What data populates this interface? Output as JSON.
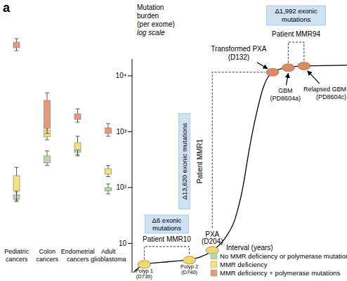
{
  "panel": "a",
  "chart_data": [
    {
      "type": "box",
      "categories": [
        "Pediatric cancers",
        "Colon cancers",
        "Endometrial cancers",
        "Adult glioblastoma"
      ],
      "log": "y",
      "ylim": [
        3,
        30000
      ],
      "tick_labels": "x",
      "legend": "bottom right",
      "series": [
        {
          "name": "No MMR deficiency or polymerase mutations",
          "color": "#b6dbab",
          "min": [
            5.7,
            35,
            61,
            8.4
          ],
          "q1": [
            6.5,
            40,
            68,
            9.7
          ],
          "q3": [
            8.1,
            57,
            78,
            11.5
          ],
          "max": [
            9.3,
            73,
            93,
            13.8
          ]
        },
        {
          "name": "MMR deficiency",
          "color": "#f6e27c",
          "min": [
            6.1,
            128,
            57,
            20
          ],
          "q1": [
            9.7,
            148,
            78,
            22.6
          ],
          "q3": [
            21,
            210,
            111,
            30
          ],
          "max": [
            32,
            270,
            153,
            35
          ]
        },
        {
          "name": "MMR deficiency + polymerase mutations",
          "color": "#e89a78",
          "min": [
            11500,
            176,
            311,
            153
          ],
          "q1": [
            13300,
            226,
            358,
            176
          ],
          "q3": [
            17600,
            934,
            475,
            234
          ],
          "max": [
            21000,
            1370,
            609,
            290
          ]
        }
      ]
    },
    {
      "type": "line",
      "xlabel": "Interval (years)",
      "ylabel": [
        "Mutation",
        "burden",
        "(per exome)",
        "log scale"
      ],
      "log": "y",
      "xlim": [
        0,
        30
      ],
      "ylim": [
        3,
        20000
      ],
      "yticks": [
        10,
        {
          "value": 100,
          "label": "10²"
        },
        {
          "value": 1000,
          "label": "10³"
        },
        {
          "value": 10000,
          "label": "10⁴"
        }
      ],
      "tick_labels": "y",
      "color": "#000000",
      "x": [
        0.2,
        1.7,
        5.1,
        8.0,
        11.0,
        12.9,
        14.4,
        15.4,
        16.4,
        17.4,
        18.3,
        19.6,
        21.8,
        24.7,
        30
      ],
      "values": [
        3.0,
        4.2,
        4.7,
        5.1,
        7.1,
        12,
        28,
        91,
        520,
        2200,
        6100,
        11600,
        14200,
        15100,
        15500
      ],
      "samples": {
        "labels": [
          "Polyp 1 (D739)",
          "Polyp 2 (D740)",
          "PXA (D204)",
          "Transformed PXA (D132)",
          "GBM (PD8604a)",
          "Relapsed GBM (PD8604c)"
        ],
        "x": [
          1.7,
          8.0,
          11.2,
          19.6,
          21.8,
          24.0
        ],
        "values": [
          4.2,
          5.0,
          7.5,
          11600,
          14000,
          15000
        ],
        "colors": [
          "#f3d96c",
          "#f3d96c",
          "#f3d96c",
          "#dd8a62",
          "#dd8a62",
          "#dd8a62"
        ]
      },
      "annotations": [
        {
          "text": "Δ6 exonic mutations",
          "patient": "Patient MMR10"
        },
        {
          "text": "Δ13,620 exonic mutations",
          "patient": "Patient MMR1"
        },
        {
          "text": "Δ1,992 exonic mutations",
          "patient": "Patient MMR94"
        }
      ]
    }
  ]
}
